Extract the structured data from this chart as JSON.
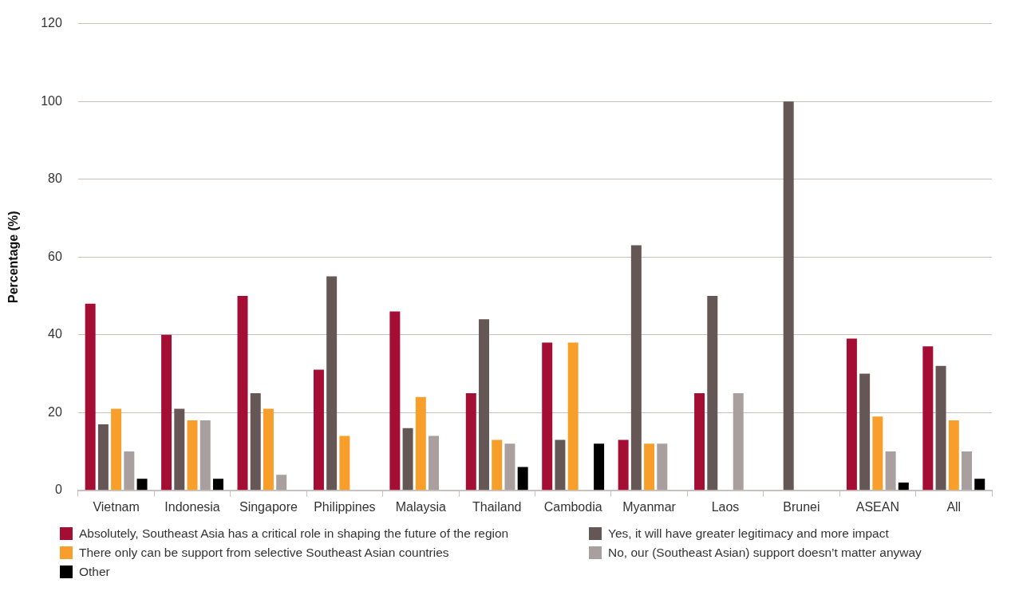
{
  "chart_data": {
    "type": "bar",
    "ylabel": "Percentage (%)",
    "categories": [
      "Vietnam",
      "Indonesia",
      "Singapore",
      "Philippines",
      "Malaysia",
      "Thailand",
      "Cambodia",
      "Myanmar",
      "Laos",
      "Brunei",
      "ASEAN",
      "All"
    ],
    "series": [
      {
        "name": "Absolutely, Southeast Asia has a critical role in shaping the future of the region",
        "color": "#a50e34",
        "values": [
          48,
          40,
          50,
          31,
          46,
          25,
          38,
          13,
          25,
          null,
          39,
          37
        ]
      },
      {
        "name": "Yes, it will have greater legitimacy and more impact",
        "color": "#645755",
        "values": [
          17,
          21,
          25,
          55,
          16,
          44,
          13,
          63,
          50,
          100,
          30,
          32
        ]
      },
      {
        "name": "There only can be support from selective Southeast Asian countries",
        "color": "#f89e2a",
        "values": [
          21,
          18,
          21,
          14,
          24,
          13,
          38,
          12,
          null,
          null,
          19,
          18
        ]
      },
      {
        "name": "No, our (Southeast Asian) support doesn’t matter anyway",
        "color": "#a89f9e",
        "values": [
          10,
          18,
          4,
          null,
          14,
          12,
          null,
          12,
          25,
          null,
          10,
          10
        ]
      },
      {
        "name": "Other",
        "color": "#000000",
        "values": [
          3,
          3,
          null,
          null,
          null,
          6,
          12,
          null,
          null,
          null,
          2,
          3
        ]
      }
    ],
    "ylim": [
      0,
      120
    ],
    "yticks": [
      0,
      20,
      40,
      60,
      80,
      100,
      120
    ],
    "grid": "y",
    "legend": "bottom"
  }
}
